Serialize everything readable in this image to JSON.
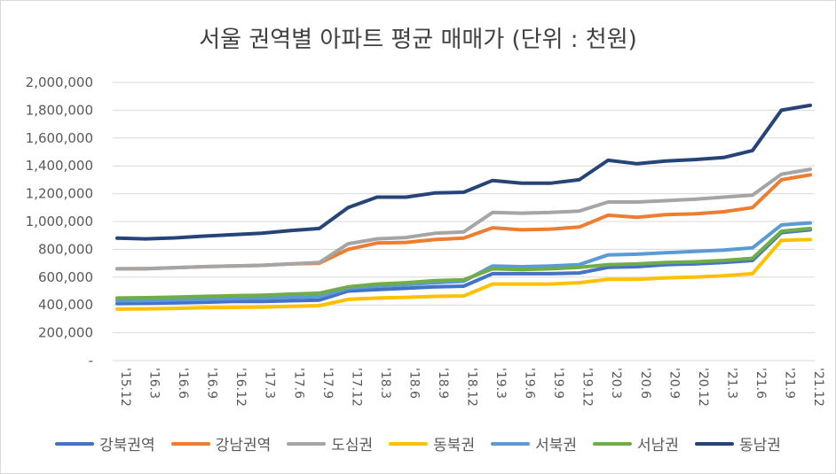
{
  "chart_data": {
    "type": "line",
    "title": "서울 권역별 아파트 평균 매매가 (단위 : 천원)",
    "ylim": [
      0,
      2000000
    ],
    "yticks": [
      "-",
      "200,000",
      "400,000",
      "600,000",
      "800,000",
      "1,000,000",
      "1,200,000",
      "1,400,000",
      "1,600,000",
      "1,800,000",
      "2,000,000"
    ],
    "x_tick_labels": [
      "'15.12",
      "'16.3",
      "'16.6",
      "'16.9",
      "'16.12",
      "'17.3",
      "'17.6",
      "'17.9",
      "'17.12",
      "'18.3",
      "'18.6",
      "'18.9",
      "'18.12",
      "'19.3",
      "'19.6",
      "'19.9",
      "'19.12",
      "'20.3",
      "'20.6",
      "'20.9",
      "'20.12",
      "'21.3",
      "'21.6",
      "'21.9",
      "'21.12"
    ],
    "x": [
      "'15.12",
      "'16.3",
      "'16.6",
      "'16.9",
      "'16.12",
      "'17.3",
      "'17.6",
      "'17.9",
      "'17.12",
      "'18.3",
      "'18.6",
      "'18.9",
      "'18.12",
      "'19.3",
      "'19.6",
      "'19.9",
      "'19.12",
      "'20.3",
      "'20.6",
      "'20.9",
      "'20.12",
      "'21.3",
      "'21.6",
      "'21.9",
      "'21.12"
    ],
    "grid": true,
    "legend_position": "bottom",
    "series": [
      {
        "name": "강북권역",
        "color": "#4472c4",
        "values": [
          410000,
          412000,
          415000,
          420000,
          425000,
          425000,
          430000,
          435000,
          500000,
          510000,
          520000,
          530000,
          535000,
          625000,
          625000,
          625000,
          630000,
          670000,
          675000,
          690000,
          695000,
          705000,
          720000,
          920000,
          940000
        ]
      },
      {
        "name": "강남권역",
        "color": "#ed7d31",
        "values": [
          660000,
          660000,
          668000,
          675000,
          680000,
          685000,
          695000,
          700000,
          800000,
          845000,
          850000,
          870000,
          880000,
          955000,
          940000,
          945000,
          960000,
          1045000,
          1030000,
          1050000,
          1055000,
          1070000,
          1100000,
          1300000,
          1335000
        ]
      },
      {
        "name": "도심권",
        "color": "#a5a5a5",
        "values": [
          660000,
          662000,
          668000,
          675000,
          680000,
          685000,
          695000,
          705000,
          840000,
          875000,
          885000,
          915000,
          925000,
          1065000,
          1060000,
          1065000,
          1075000,
          1140000,
          1140000,
          1150000,
          1160000,
          1175000,
          1190000,
          1340000,
          1375000
        ]
      },
      {
        "name": "동북권",
        "color": "#ffc000",
        "values": [
          370000,
          372000,
          375000,
          380000,
          382000,
          385000,
          390000,
          395000,
          440000,
          450000,
          455000,
          462000,
          465000,
          550000,
          550000,
          550000,
          560000,
          585000,
          585000,
          595000,
          600000,
          610000,
          625000,
          865000,
          870000
        ]
      },
      {
        "name": "서북권",
        "color": "#5b9bd5",
        "values": [
          430000,
          432000,
          436000,
          440000,
          445000,
          450000,
          455000,
          460000,
          520000,
          535000,
          545000,
          560000,
          570000,
          680000,
          675000,
          680000,
          690000,
          760000,
          765000,
          775000,
          785000,
          795000,
          810000,
          975000,
          990000
        ]
      },
      {
        "name": "서남권",
        "color": "#70ad47",
        "values": [
          450000,
          452000,
          456000,
          462000,
          466000,
          470000,
          478000,
          485000,
          530000,
          550000,
          560000,
          575000,
          580000,
          660000,
          655000,
          660000,
          670000,
          690000,
          695000,
          705000,
          710000,
          720000,
          735000,
          930000,
          950000
        ]
      },
      {
        "name": "동남권",
        "color": "#264478",
        "values": [
          880000,
          875000,
          882000,
          895000,
          905000,
          915000,
          935000,
          950000,
          1100000,
          1175000,
          1175000,
          1205000,
          1210000,
          1295000,
          1275000,
          1275000,
          1300000,
          1440000,
          1415000,
          1435000,
          1445000,
          1460000,
          1510000,
          1800000,
          1835000
        ]
      }
    ]
  }
}
